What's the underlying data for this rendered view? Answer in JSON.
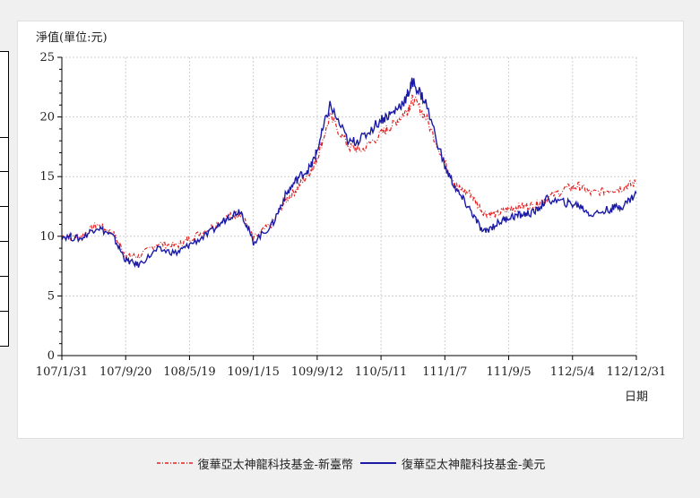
{
  "chart_data": {
    "type": "line",
    "title": "",
    "ylabel": "淨值(單位:元)",
    "xlabel": "日期",
    "ylim": [
      0,
      25
    ],
    "yticks": [
      0,
      5,
      10,
      15,
      20,
      25
    ],
    "xticks": [
      "107/1/31",
      "107/9/20",
      "108/5/19",
      "109/1/15",
      "109/9/12",
      "110/5/11",
      "111/1/7",
      "111/9/5",
      "112/5/4",
      "112/12/31"
    ],
    "grid": true,
    "legend_position": "bottom",
    "series": [
      {
        "name": "復華亞太神龍科技基金-新臺幣",
        "color": "#e32020",
        "style": "dash-dot",
        "x": [
          0,
          0.3,
          0.55,
          0.8,
          1.0,
          1.2,
          1.5,
          1.8,
          2.0,
          2.3,
          2.6,
          2.8,
          3.0,
          3.3,
          3.5,
          3.7,
          3.9,
          4.0,
          4.2,
          4.5,
          4.7,
          5.0,
          5.2,
          5.4,
          5.5,
          5.7,
          6.0,
          6.2,
          6.4,
          6.6,
          6.8,
          7.0,
          7.2,
          7.4,
          7.6,
          7.9,
          8.1,
          8.3,
          8.6,
          8.8,
          9.0
        ],
        "values": [
          10.0,
          10.0,
          11.0,
          10.3,
          8.4,
          8.3,
          9.4,
          9.2,
          9.8,
          10.6,
          11.6,
          12.0,
          9.8,
          11.1,
          13.0,
          14.1,
          15.5,
          16.6,
          20.0,
          17.5,
          17.2,
          18.6,
          19.4,
          20.5,
          21.5,
          20.0,
          16.2,
          14.0,
          13.6,
          12.0,
          11.8,
          12.3,
          12.5,
          12.6,
          13.2,
          14.0,
          14.2,
          13.6,
          13.9,
          14.1,
          14.5
        ]
      },
      {
        "name": "復華亞太神龍科技基金-美元",
        "color": "#1a1aa6",
        "style": "solid",
        "x": [
          0,
          0.3,
          0.55,
          0.8,
          1.0,
          1.2,
          1.5,
          1.8,
          2.0,
          2.3,
          2.6,
          2.8,
          3.0,
          3.3,
          3.5,
          3.7,
          3.9,
          4.0,
          4.2,
          4.5,
          4.7,
          5.0,
          5.2,
          5.4,
          5.5,
          5.7,
          6.0,
          6.2,
          6.4,
          6.6,
          6.8,
          7.0,
          7.2,
          7.4,
          7.6,
          7.9,
          8.1,
          8.3,
          8.6,
          8.8,
          9.0
        ],
        "values": [
          10.0,
          9.8,
          10.8,
          10.0,
          8.0,
          7.6,
          8.9,
          8.6,
          9.3,
          10.2,
          11.6,
          12.2,
          9.5,
          11.0,
          13.4,
          14.9,
          15.8,
          17.2,
          21.0,
          17.8,
          18.2,
          19.8,
          20.4,
          21.6,
          23.0,
          21.2,
          15.8,
          13.7,
          12.2,
          10.3,
          11.0,
          11.6,
          11.8,
          12.0,
          13.1,
          12.8,
          12.6,
          11.8,
          12.3,
          12.6,
          13.6
        ]
      }
    ]
  }
}
